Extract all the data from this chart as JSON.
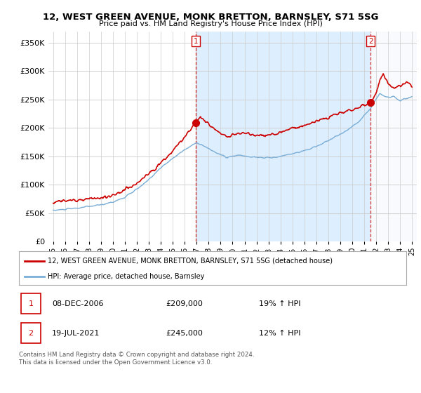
{
  "title_line1": "12, WEST GREEN AVENUE, MONK BRETTON, BARNSLEY, S71 5SG",
  "title_line2": "Price paid vs. HM Land Registry's House Price Index (HPI)",
  "ylim": [
    0,
    370000
  ],
  "yticks": [
    0,
    50000,
    100000,
    150000,
    200000,
    250000,
    300000,
    350000
  ],
  "hpi_color": "#7aaed6",
  "price_color": "#cc0000",
  "shade_color": "#ddeeff",
  "sale1_x": 2006.92,
  "sale1_price": 209000,
  "sale2_x": 2021.54,
  "sale2_price": 245000,
  "legend_price_label": "12, WEST GREEN AVENUE, MONK BRETTON, BARNSLEY, S71 5SG (detached house)",
  "legend_hpi_label": "HPI: Average price, detached house, Barnsley",
  "row1_marker": "1",
  "row1_date": "08-DEC-2006",
  "row1_price": "£209,000",
  "row1_hpi": "19% ↑ HPI",
  "row2_marker": "2",
  "row2_date": "19-JUL-2021",
  "row2_price": "£245,000",
  "row2_hpi": "12% ↑ HPI",
  "footer": "Contains HM Land Registry data © Crown copyright and database right 2024.\nThis data is licensed under the Open Government Licence v3.0.",
  "background_color": "#ffffff",
  "grid_color": "#cccccc",
  "xlim_left": 1994.6,
  "xlim_right": 2025.4
}
